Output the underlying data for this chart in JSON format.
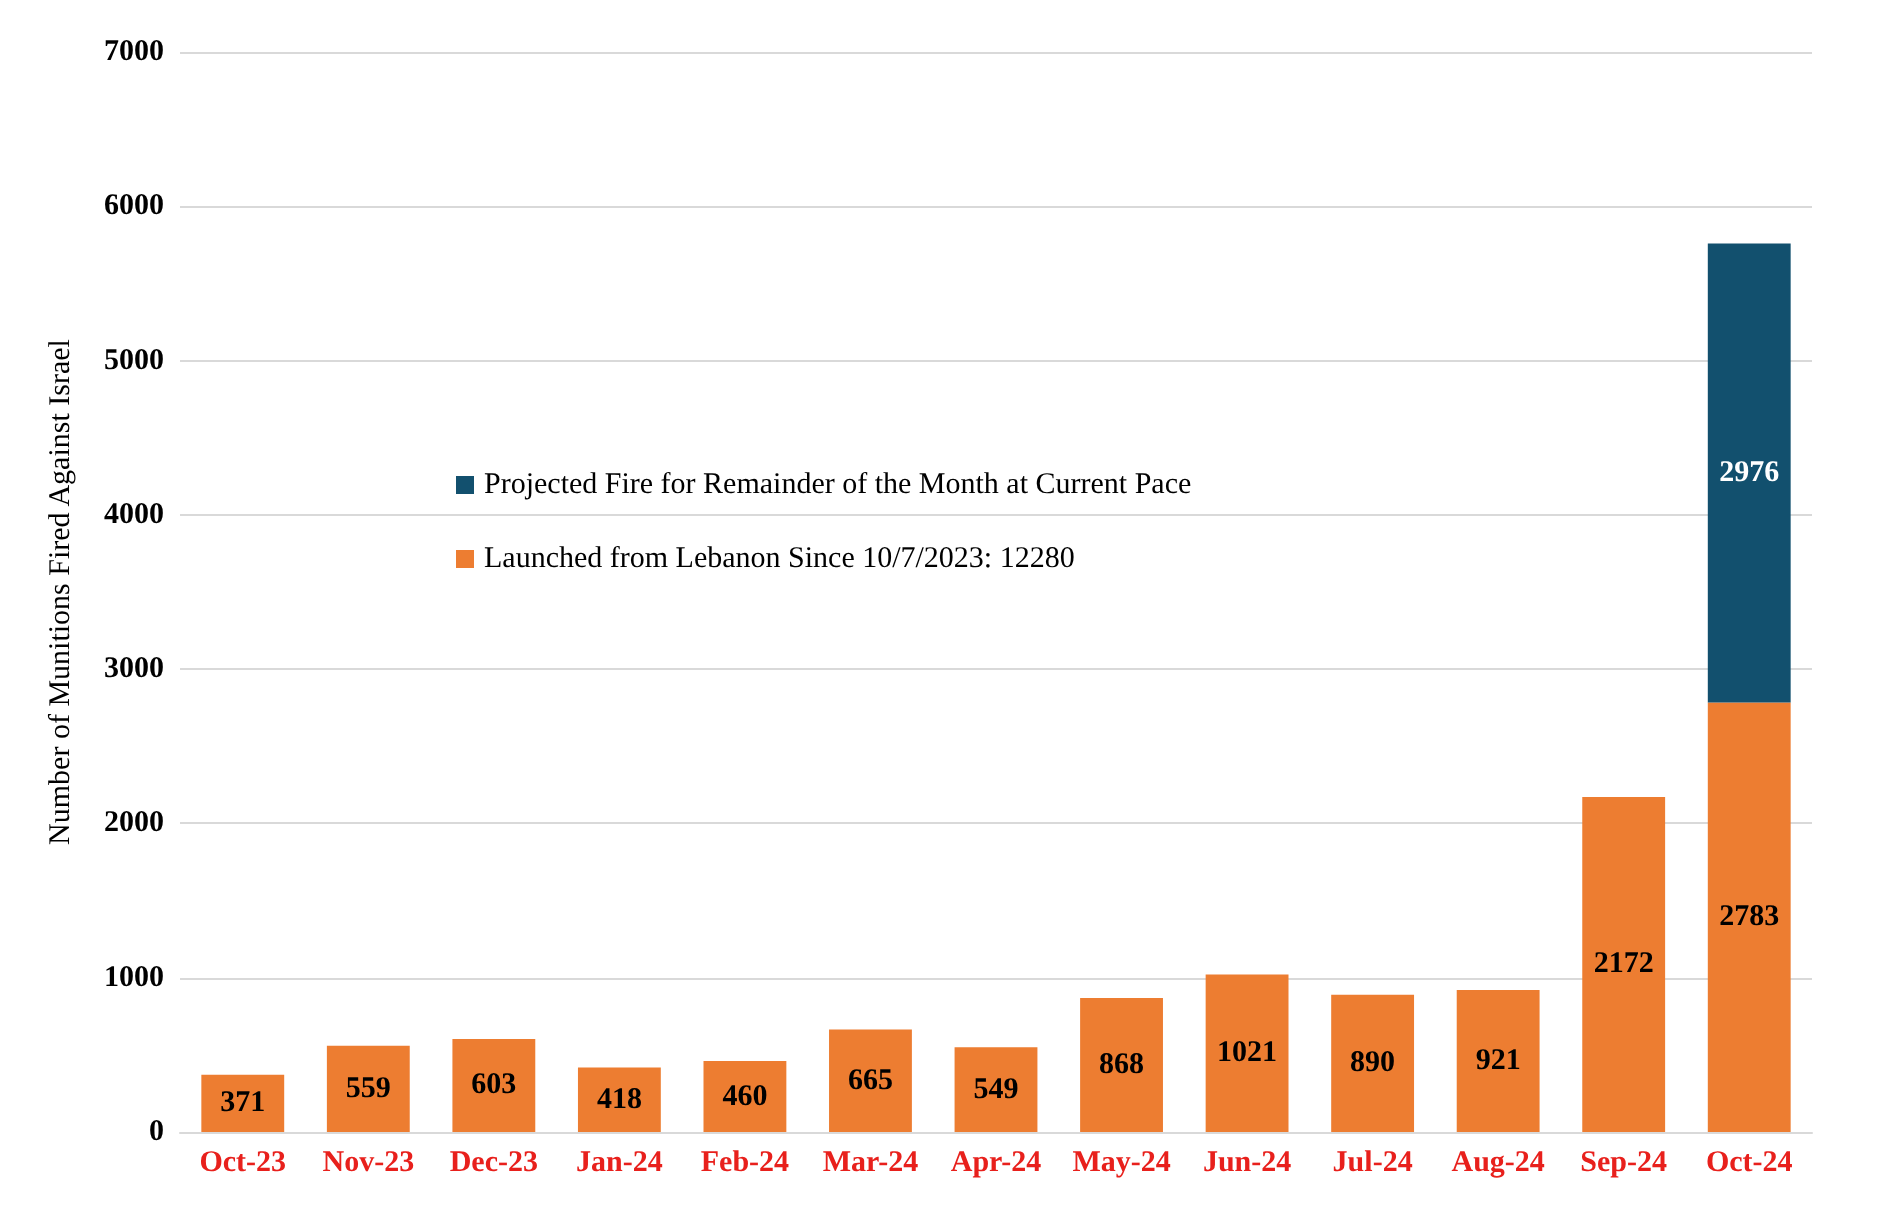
{
  "chart_data": {
    "type": "bar",
    "stacked": true,
    "ylabel": "Number of Munitions Fired Against Israel",
    "categories": [
      "Oct-23",
      "Nov-23",
      "Dec-23",
      "Jan-24",
      "Feb-24",
      "Mar-24",
      "Apr-24",
      "May-24",
      "Jun-24",
      "Jul-24",
      "Aug-24",
      "Sep-24",
      "Oct-24"
    ],
    "series": [
      {
        "name": "Launched from Lebanon Since 10/7/2023: 12280",
        "color": "#ed7d31",
        "values": [
          371,
          559,
          603,
          418,
          460,
          665,
          549,
          868,
          1021,
          890,
          921,
          2172,
          2783
        ]
      },
      {
        "name": "Projected Fire for Remainder of the Month at Current Pace",
        "color": "#12506e",
        "values": [
          null,
          null,
          null,
          null,
          null,
          null,
          null,
          null,
          null,
          null,
          null,
          null,
          2976
        ]
      }
    ],
    "ylim": [
      0,
      7000
    ],
    "yticks": [
      0,
      1000,
      2000,
      3000,
      4000,
      5000,
      6000,
      7000
    ],
    "grid": "y",
    "legend": "left",
    "data_labels": true
  }
}
